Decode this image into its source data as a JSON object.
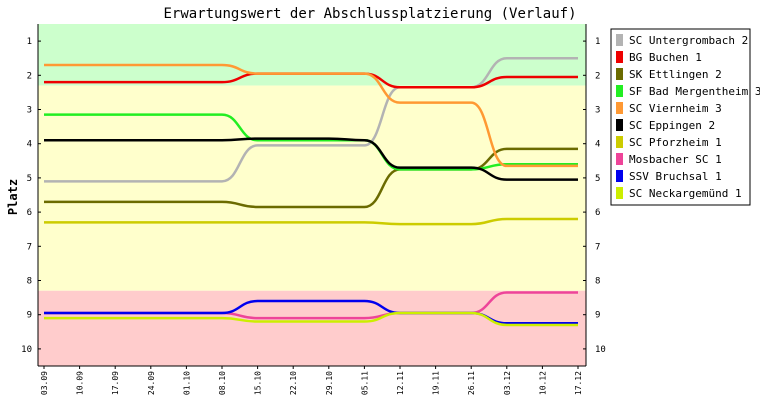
{
  "chart_data": {
    "type": "line",
    "title": "Erwartungswert der Abschlussplatzierung (Verlauf)",
    "xlabel": "",
    "ylabel": "Platz",
    "ylim": [
      10.5,
      0.5
    ],
    "y_ticks": [
      1,
      2,
      3,
      4,
      5,
      6,
      7,
      8,
      9,
      10
    ],
    "grid": false,
    "legend_position": "right",
    "categories": [
      "03.09",
      "10.09",
      "17.09",
      "24.09",
      "01.10",
      "08.10",
      "15.10",
      "22.10",
      "29.10",
      "05.11",
      "12.11",
      "19.11",
      "26.11",
      "03.12",
      "10.12",
      "17.12"
    ],
    "bands": [
      {
        "from": 0.5,
        "to": 2.3,
        "color": "#ccffcc"
      },
      {
        "from": 2.3,
        "to": 8.3,
        "color": "#ffffcc"
      },
      {
        "from": 8.3,
        "to": 10.5,
        "color": "#ffcccc"
      }
    ],
    "series": [
      {
        "name": "SC Untergrombach 2",
        "color": "#b3b3b3",
        "values": [
          5.1,
          5.1,
          5.1,
          5.1,
          5.1,
          5.1,
          4.05,
          4.05,
          4.05,
          4.05,
          2.35,
          2.35,
          2.35,
          1.5,
          1.5,
          1.5
        ]
      },
      {
        "name": "BG Buchen 1",
        "color": "#ee0000",
        "values": [
          2.2,
          2.2,
          2.2,
          2.2,
          2.2,
          2.2,
          1.95,
          1.95,
          1.95,
          1.95,
          2.35,
          2.35,
          2.35,
          2.05,
          2.05,
          2.05
        ]
      },
      {
        "name": "SK Ettlingen 2",
        "color": "#6b6b00",
        "values": [
          5.7,
          5.7,
          5.7,
          5.7,
          5.7,
          5.7,
          5.85,
          5.85,
          5.85,
          5.85,
          4.75,
          4.75,
          4.75,
          4.15,
          4.15,
          4.15
        ]
      },
      {
        "name": "SF Bad Mergentheim 3",
        "color": "#22ee22",
        "values": [
          3.15,
          3.15,
          3.15,
          3.15,
          3.15,
          3.15,
          3.9,
          3.9,
          3.9,
          3.9,
          4.75,
          4.75,
          4.75,
          4.6,
          4.6,
          4.6
        ]
      },
      {
        "name": "SC Viernheim 3",
        "color": "#ff9933",
        "values": [
          1.7,
          1.7,
          1.7,
          1.7,
          1.7,
          1.7,
          1.95,
          1.95,
          1.95,
          1.95,
          2.8,
          2.8,
          2.8,
          4.65,
          4.65,
          4.65
        ]
      },
      {
        "name": "SC Eppingen 2",
        "color": "#000000",
        "values": [
          3.9,
          3.9,
          3.9,
          3.9,
          3.9,
          3.9,
          3.85,
          3.85,
          3.85,
          3.9,
          4.7,
          4.7,
          4.7,
          5.05,
          5.05,
          5.05
        ]
      },
      {
        "name": "SC Pforzheim 1",
        "color": "#cccc00",
        "values": [
          6.3,
          6.3,
          6.3,
          6.3,
          6.3,
          6.3,
          6.3,
          6.3,
          6.3,
          6.3,
          6.35,
          6.35,
          6.35,
          6.2,
          6.2,
          6.2
        ]
      },
      {
        "name": "Mosbacher SC 1",
        "color": "#ee4499",
        "values": [
          8.95,
          8.95,
          8.95,
          8.95,
          8.95,
          8.95,
          9.1,
          9.1,
          9.1,
          9.1,
          8.95,
          8.95,
          8.95,
          8.35,
          8.35,
          8.35
        ]
      },
      {
        "name": "SSV Bruchsal 1",
        "color": "#0000ee",
        "values": [
          8.95,
          8.95,
          8.95,
          8.95,
          8.95,
          8.95,
          8.6,
          8.6,
          8.6,
          8.6,
          8.95,
          8.95,
          8.95,
          9.25,
          9.25,
          9.25
        ]
      },
      {
        "name": "SC Neckargemünd 1",
        "color": "#ccee00",
        "values": [
          9.1,
          9.1,
          9.1,
          9.1,
          9.1,
          9.1,
          9.2,
          9.2,
          9.2,
          9.2,
          8.95,
          8.95,
          8.95,
          9.3,
          9.3,
          9.3
        ]
      }
    ]
  }
}
